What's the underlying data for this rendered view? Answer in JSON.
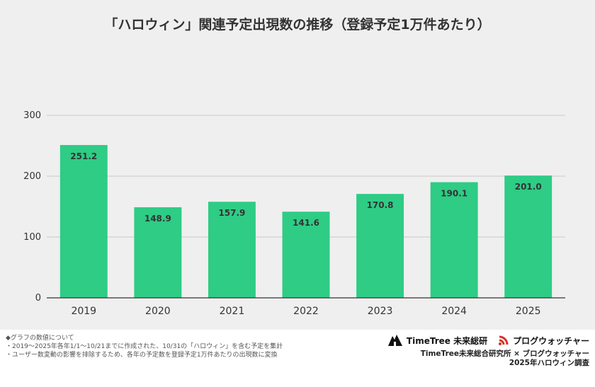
{
  "chart_data": {
    "type": "bar",
    "title": "「ハロウィン」関連予定出現数の推移（登録予定1万件あたり）",
    "categories": [
      "2019",
      "2020",
      "2021",
      "2022",
      "2023",
      "2024",
      "2025"
    ],
    "values": [
      251.2,
      148.9,
      157.9,
      141.6,
      170.8,
      190.1,
      201.0
    ],
    "value_labels": [
      "251.2",
      "148.9",
      "157.9",
      "141.6",
      "170.8",
      "190.1",
      "201.0"
    ],
    "y_ticks": [
      0,
      100,
      200,
      300
    ],
    "ylim": [
      0,
      300
    ],
    "bar_color": "#2ecc85",
    "grid": "horizontal",
    "legend": "none"
  },
  "footnote": {
    "lines": [
      "◆グラフの数値について",
      "・2019〜2025年各年1/1〜10/21までに作成された、10/31の「ハロウィン」を含む予定を集計",
      "・ユーザー数変動の影響を排除するため、各年の予定数を登録予定1万件あたりの出現数に変換"
    ]
  },
  "credits": {
    "logo_timetree": "TimeTree 未来総研",
    "logo_blogwatcher": "プログウォッチャー",
    "line1": "TimeTree未来総合研究所 × ブログウォッチャー",
    "line2": "2025年ハロウィン調査"
  },
  "colors": {
    "panel_background": "#efefef",
    "bar": "#2ecc85",
    "blogwatcher_brand": "#d6332a"
  }
}
